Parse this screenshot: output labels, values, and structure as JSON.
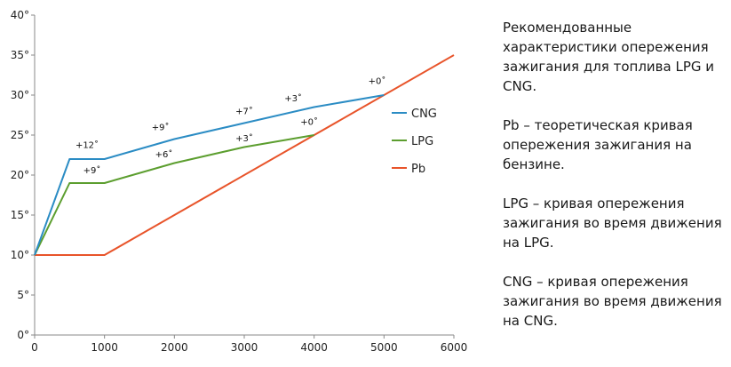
{
  "chart_data": {
    "type": "line",
    "title": "",
    "xlabel": "",
    "ylabel": "",
    "xlim": [
      0,
      6000
    ],
    "ylim": [
      0,
      40
    ],
    "xticks": [
      0,
      1000,
      2000,
      3000,
      4000,
      5000,
      6000
    ],
    "xtick_labels": [
      "0",
      "1000",
      "2000",
      "3000",
      "4000",
      "5000",
      "6000"
    ],
    "yticks": [
      0,
      5,
      10,
      15,
      20,
      25,
      30,
      35,
      40
    ],
    "ytick_labels": [
      "0°",
      "5°",
      "10°",
      "15°",
      "20°",
      "25°",
      "30°",
      "35°",
      "40°"
    ],
    "grid": false,
    "legend_position": "right",
    "series": [
      {
        "name": "CNG",
        "color": "#2b8cc4",
        "x": [
          0,
          500,
          1000,
          2000,
          3000,
          4000,
          5000
        ],
        "y": [
          10,
          22,
          22,
          24.5,
          26.5,
          28.5,
          30
        ]
      },
      {
        "name": "LPG",
        "color": "#5c9e2f",
        "x": [
          0,
          500,
          1000,
          2000,
          3000,
          4000
        ],
        "y": [
          10,
          19,
          19,
          21.5,
          23.5,
          25
        ]
      },
      {
        "name": "Pb",
        "color": "#e8542a",
        "x": [
          0,
          1000,
          6000
        ],
        "y": [
          10,
          10,
          35
        ]
      }
    ],
    "annotations": [
      {
        "text": "+12˚",
        "x": 750,
        "y": 23.4
      },
      {
        "text": "+9˚",
        "x": 1800,
        "y": 25.6
      },
      {
        "text": "+7˚",
        "x": 3000,
        "y": 27.6
      },
      {
        "text": "+3˚",
        "x": 3700,
        "y": 29.2
      },
      {
        "text": "+0˚",
        "x": 4900,
        "y": 31.4
      },
      {
        "text": "+9˚",
        "x": 820,
        "y": 20.2
      },
      {
        "text": "+6˚",
        "x": 1850,
        "y": 22.2
      },
      {
        "text": "+3˚",
        "x": 3000,
        "y": 24.2
      },
      {
        "text": "+0˚",
        "x": 3930,
        "y": 26.3
      }
    ]
  },
  "description": {
    "paragraphs": [
      "Рекомендованные характеристики опережения зажигания для топлива LPG и CNG.",
      "Pb – теоретическая кривая опережения зажигания на бензине.",
      "LPG – кривая опережения зажигания во время движения на LPG.",
      "CNG – кривая опережения зажигания во время движения на CNG."
    ]
  }
}
